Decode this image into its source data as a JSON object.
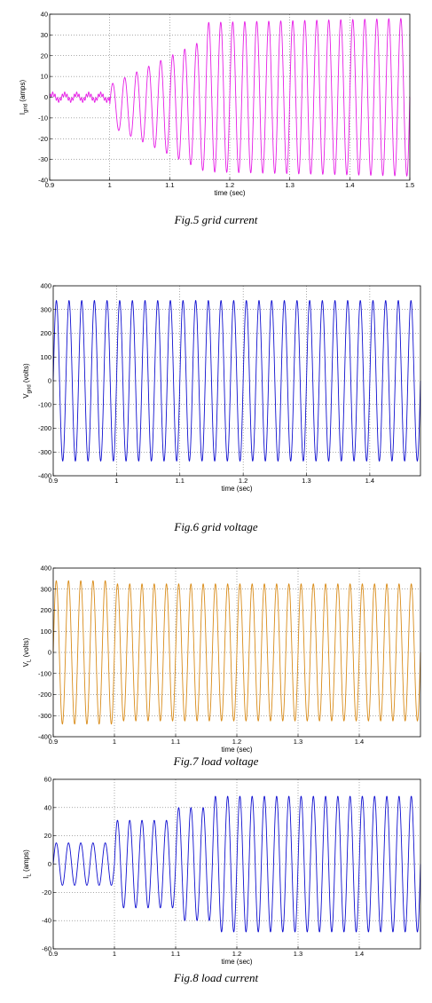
{
  "chart_data": [
    {
      "type": "line",
      "caption": "Fig.5 grid current",
      "xlabel": "time (sec)",
      "ylabel": "I",
      "ylabel_sub": "grid",
      "ylabel_suffix": " (amps)",
      "xlim": [
        0.9,
        1.5
      ],
      "ylim": [
        -40,
        40
      ],
      "xticks": [
        0.9,
        1,
        1.1,
        1.2,
        1.3,
        1.4,
        1.5
      ],
      "xtick_labels": [
        "0.9",
        "1",
        "1.1",
        "1.2",
        "1.3",
        "1.4",
        "1.5"
      ],
      "yticks": [
        -40,
        -30,
        -20,
        -10,
        0,
        10,
        20,
        30,
        40
      ],
      "ytick_labels": [
        "-40",
        "-30",
        "-20",
        "-10",
        "0",
        "10",
        "20",
        "30",
        "40"
      ],
      "grid": true,
      "color": "#e61ee6",
      "series": [
        {
          "frequency_hz": 50,
          "segments": [
            {
              "t_start": 0.9,
              "t_end": 1.0,
              "amplitude": 1.5,
              "ripple_amplitude": 1.0,
              "ripple_frequency_hz": 250
            },
            {
              "t_start": 1.0,
              "t_end": 1.16,
              "amplitude_start": 10,
              "amplitude_end": 32,
              "offset": -4
            },
            {
              "t_start": 1.16,
              "t_end": 1.5,
              "amplitude_start": 36,
              "amplitude_end": 38,
              "offset": 0
            }
          ]
        }
      ]
    },
    {
      "type": "line",
      "caption": "Fig.6 grid voltage",
      "xlabel": "time (sec)",
      "ylabel": "V",
      "ylabel_sub": "grid",
      "ylabel_suffix": " (volts)",
      "xlim": [
        0.9,
        1.48
      ],
      "ylim": [
        -400,
        400
      ],
      "xticks": [
        0.9,
        1,
        1.1,
        1.2,
        1.3,
        1.4
      ],
      "xtick_labels": [
        "0.9",
        "1",
        "1.1",
        "1.2",
        "1.3",
        "1.4"
      ],
      "yticks": [
        -400,
        -300,
        -200,
        -100,
        0,
        100,
        200,
        300,
        400
      ],
      "ytick_labels": [
        "-400",
        "-300",
        "-200",
        "-100",
        "0",
        "100",
        "200",
        "300",
        "400"
      ],
      "grid": true,
      "color": "#1010d0",
      "series": [
        {
          "frequency_hz": 50,
          "segments": [
            {
              "t_start": 0.9,
              "t_end": 1.48,
              "amplitude": 338,
              "offset": 0
            }
          ]
        }
      ]
    },
    {
      "type": "line",
      "caption": "Fig.7 load voltage",
      "xlabel": "time (sec)",
      "ylabel": "V",
      "ylabel_sub": "L",
      "ylabel_suffix": " (volts)",
      "xlim": [
        0.9,
        1.5
      ],
      "ylim": [
        -400,
        400
      ],
      "xticks": [
        0.9,
        1,
        1.1,
        1.2,
        1.3,
        1.4
      ],
      "xtick_labels": [
        "0.9",
        "1",
        "1.1",
        "1.2",
        "1.3",
        "1.4"
      ],
      "yticks": [
        -400,
        -300,
        -200,
        -100,
        0,
        100,
        200,
        300,
        400
      ],
      "ytick_labels": [
        "-400",
        "-300",
        "-200",
        "-100",
        "0",
        "100",
        "200",
        "300",
        "400"
      ],
      "grid": true,
      "color": "#d98c1a",
      "series": [
        {
          "frequency_hz": 50,
          "segments": [
            {
              "t_start": 0.9,
              "t_end": 1.0,
              "amplitude": 340,
              "offset": 0
            },
            {
              "t_start": 1.0,
              "t_end": 1.5,
              "amplitude": 325,
              "offset": 0
            }
          ]
        }
      ]
    },
    {
      "type": "line",
      "caption": "Fig.8 load current",
      "xlabel": "time (sec)",
      "ylabel": "I",
      "ylabel_sub": "L",
      "ylabel_suffix": " (amps)",
      "xlim": [
        0.9,
        1.5
      ],
      "ylim": [
        -60,
        60
      ],
      "xticks": [
        0.9,
        1,
        1.1,
        1.2,
        1.3,
        1.4
      ],
      "xtick_labels": [
        "0.9",
        "1",
        "1.1",
        "1.2",
        "1.3",
        "1.4"
      ],
      "yticks": [
        -60,
        -40,
        -20,
        0,
        20,
        40,
        60
      ],
      "ytick_labels": [
        "-60",
        "-40",
        "-20",
        "0",
        "20",
        "40",
        "60"
      ],
      "grid": true,
      "color": "#1010d0",
      "series": [
        {
          "frequency_hz": 50,
          "segments": [
            {
              "t_start": 0.9,
              "t_end": 1.0,
              "amplitude": 15,
              "offset": 0
            },
            {
              "t_start": 1.0,
              "t_end": 1.1,
              "amplitude": 31,
              "offset": 0
            },
            {
              "t_start": 1.1,
              "t_end": 1.16,
              "amplitude": 40,
              "offset": 0
            },
            {
              "t_start": 1.16,
              "t_end": 1.5,
              "amplitude": 48,
              "offset": 0
            }
          ]
        }
      ]
    }
  ]
}
